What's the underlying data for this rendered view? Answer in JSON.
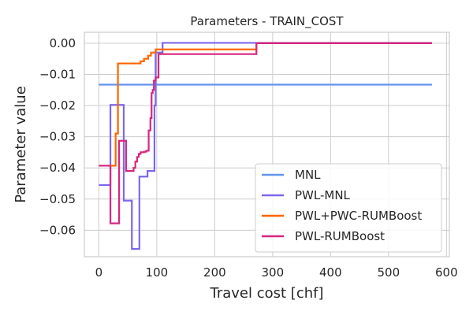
{
  "chart_data": {
    "type": "line",
    "title": "Parameters - TRAIN_COST",
    "xlabel": "Travel cost [chf]",
    "ylabel": "Parameter value",
    "xlim": [
      -25,
      605
    ],
    "ylim": [
      -0.0685,
      0.0035
    ],
    "xticks": [
      0,
      100,
      200,
      300,
      400,
      500,
      600
    ],
    "xtick_labels": [
      "0",
      "100",
      "200",
      "300",
      "400",
      "500",
      "600"
    ],
    "yticks": [
      0.0,
      -0.01,
      -0.02,
      -0.03,
      -0.04,
      -0.05,
      -0.06
    ],
    "ytick_labels": [
      "0.00",
      "−0.01",
      "−0.02",
      "−0.03",
      "−0.04",
      "−0.05",
      "−0.06"
    ],
    "grid": true,
    "legend_position": "bottom-right",
    "series": [
      {
        "name": "MNL",
        "color": "#6495ED",
        "step": false,
        "x": [
          0,
          575
        ],
        "y": [
          -0.0133,
          -0.0133
        ]
      },
      {
        "name": "PWL-MNL",
        "color": "#7B68EE",
        "step": true,
        "x": [
          0,
          18,
          20,
          40,
          43,
          55,
          57,
          68,
          70,
          82,
          84,
          92,
          96,
          98,
          108,
          110,
          575
        ],
        "y": [
          -0.0455,
          -0.0455,
          -0.0198,
          -0.0198,
          -0.0505,
          -0.0505,
          -0.066,
          -0.066,
          -0.0428,
          -0.0428,
          -0.041,
          -0.041,
          -0.02,
          -0.003,
          -0.003,
          0.0001,
          0.0001
        ]
      },
      {
        "name": "PWL+PWC-RUMBoost",
        "color": "#FF6500",
        "step": true,
        "x": [
          0,
          27,
          29,
          31,
          33,
          35,
          70,
          72,
          75,
          78,
          82,
          85,
          87,
          90,
          92,
          98,
          100,
          270,
          272,
          575
        ],
        "y": [
          -0.0393,
          -0.0393,
          -0.029,
          -0.029,
          -0.0065,
          -0.0065,
          -0.0065,
          -0.0058,
          -0.0058,
          -0.005,
          -0.005,
          -0.004,
          -0.004,
          -0.003,
          -0.003,
          -0.002,
          -0.002,
          -0.002,
          0.0,
          0.0
        ]
      },
      {
        "name": "PWL-RUMBoost",
        "color": "#D62780",
        "step": true,
        "x": [
          0,
          18,
          20,
          33,
          35,
          45,
          47,
          58,
          60,
          63,
          66,
          69,
          72,
          78,
          82,
          86,
          89,
          91,
          93,
          95,
          98,
          103,
          270,
          272,
          575
        ],
        "y": [
          -0.0393,
          -0.0393,
          -0.0578,
          -0.0578,
          -0.0313,
          -0.0313,
          -0.041,
          -0.041,
          -0.04,
          -0.038,
          -0.0365,
          -0.0355,
          -0.035,
          -0.0348,
          -0.0345,
          -0.028,
          -0.024,
          -0.016,
          -0.015,
          -0.012,
          -0.011,
          -0.0035,
          -0.0035,
          0.0,
          0.0
        ]
      }
    ]
  }
}
